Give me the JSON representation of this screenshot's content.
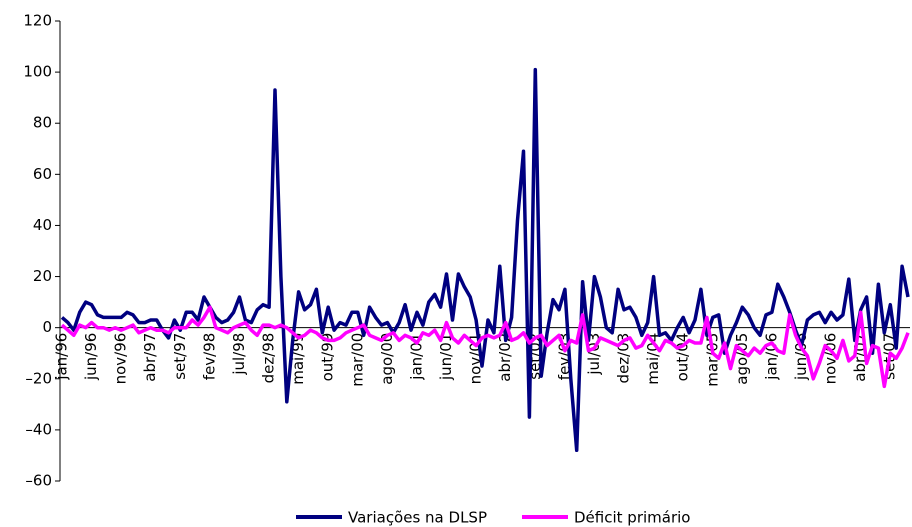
{
  "chart_data": {
    "type": "line",
    "categories": [
      "jan/96",
      null,
      null,
      null,
      null,
      "jun/96",
      null,
      null,
      null,
      null,
      "nov/96",
      null,
      null,
      null,
      null,
      "abr/97",
      null,
      null,
      null,
      null,
      "set/97",
      null,
      null,
      null,
      null,
      "fev/98",
      null,
      null,
      null,
      null,
      "jul/98",
      null,
      null,
      null,
      null,
      "dez/98",
      null,
      null,
      null,
      null,
      "mai/99",
      null,
      null,
      null,
      null,
      "out/99",
      null,
      null,
      null,
      null,
      "mar/00",
      null,
      null,
      null,
      null,
      "ago/00",
      null,
      null,
      null,
      null,
      "jan/01",
      null,
      null,
      null,
      null,
      "jun/01",
      null,
      null,
      null,
      null,
      "nov/01",
      null,
      null,
      null,
      null,
      "abr/02",
      null,
      null,
      null,
      null,
      "set/02",
      null,
      null,
      null,
      null,
      "fev/03",
      null,
      null,
      null,
      null,
      "jul/03",
      null,
      null,
      null,
      null,
      "dez/03",
      null,
      null,
      null,
      null,
      "mai/04",
      null,
      null,
      null,
      null,
      "out/04",
      null,
      null,
      null,
      null,
      "mar/05",
      null,
      null,
      null,
      null,
      "ago/05",
      null,
      null,
      null,
      null,
      "jan/06",
      null,
      null,
      null,
      null,
      "jun/06",
      null,
      null,
      null,
      null,
      "nov/06",
      null,
      null,
      null,
      null,
      "abr/07",
      null,
      null,
      null,
      null,
      "set/07",
      null,
      null,
      null
    ],
    "series": [
      {
        "name": "Variações na DLSP",
        "color": "#000080",
        "values": [
          4,
          2,
          -1,
          6,
          10,
          9,
          5,
          4,
          4,
          4,
          4,
          6,
          5,
          2,
          2,
          3,
          3,
          -1,
          -4,
          3,
          -1,
          6,
          6,
          3,
          12,
          8,
          4,
          2,
          3,
          6,
          12,
          3,
          2,
          7,
          9,
          8,
          93,
          20,
          -29,
          -5,
          14,
          7,
          9,
          15,
          -2,
          8,
          -1,
          2,
          1,
          6,
          6,
          -3,
          8,
          4,
          1,
          2,
          -2,
          2,
          9,
          -1,
          6,
          1,
          10,
          13,
          8,
          21,
          3,
          21,
          16,
          12,
          3,
          -15,
          3,
          -2,
          24,
          -5,
          4,
          42,
          69,
          -35,
          101,
          -19,
          -2,
          11,
          7,
          15,
          -20,
          -48,
          18,
          -5,
          20,
          12,
          0,
          -2,
          15,
          7,
          8,
          4,
          -3,
          2,
          20,
          -3,
          -2,
          -5,
          0,
          4,
          -2,
          3,
          15,
          -3,
          4,
          5,
          -10,
          -3,
          2,
          8,
          5,
          0,
          -3,
          5,
          6,
          17,
          12,
          6,
          -1,
          -7,
          3,
          5,
          6,
          2,
          6,
          3,
          5,
          19,
          -5,
          7,
          12,
          -10,
          17,
          -2,
          9,
          -8,
          24,
          12
        ]
      },
      {
        "name": "Déficit primário",
        "color": "#ff00ff",
        "values": [
          1,
          -1,
          -3,
          1,
          0,
          2,
          0,
          0,
          -1,
          0,
          -1,
          0,
          1,
          -2,
          -1,
          0,
          -1,
          -1,
          -2,
          0,
          0,
          0,
          3,
          1,
          4,
          8,
          0,
          -1,
          -2,
          0,
          1,
          2,
          -1,
          -3,
          1,
          1,
          0,
          1,
          0,
          -2,
          -4,
          -3,
          -1,
          -2,
          -4,
          -5,
          -5,
          -4,
          -2,
          -1,
          0,
          1,
          -3,
          -4,
          -5,
          -3,
          -2,
          -5,
          -3,
          -4,
          -6,
          -2,
          -3,
          -1,
          -5,
          2,
          -4,
          -6,
          -3,
          -5,
          -7,
          -4,
          -3,
          -4,
          -3,
          2,
          -5,
          -4,
          -2,
          -6,
          -4,
          -3,
          -7,
          -5,
          -3,
          -9,
          -5,
          -6,
          5,
          -9,
          -8,
          -4,
          -5,
          -6,
          -7,
          -5,
          -4,
          -8,
          -7,
          -3,
          -6,
          -9,
          -5,
          -6,
          -8,
          -7,
          -5,
          -6,
          -6,
          4,
          -10,
          -12,
          -6,
          -16,
          -7,
          -9,
          -11,
          -8,
          -10,
          -7,
          -6,
          -9,
          -10,
          5,
          -3,
          -8,
          -11,
          -20,
          -14,
          -7,
          -9,
          -12,
          -5,
          -13,
          -11,
          6,
          -14,
          -7,
          -8,
          -23,
          -10,
          -12,
          -8,
          -2
        ]
      }
    ],
    "ylim": [
      -60,
      120
    ],
    "yticks": [
      {
        "value": -60,
        "label": "–60"
      },
      {
        "value": -40,
        "label": "–40"
      },
      {
        "value": -20,
        "label": "–20"
      },
      0,
      20,
      40,
      60,
      80,
      100,
      120
    ],
    "legend": "bottom"
  }
}
